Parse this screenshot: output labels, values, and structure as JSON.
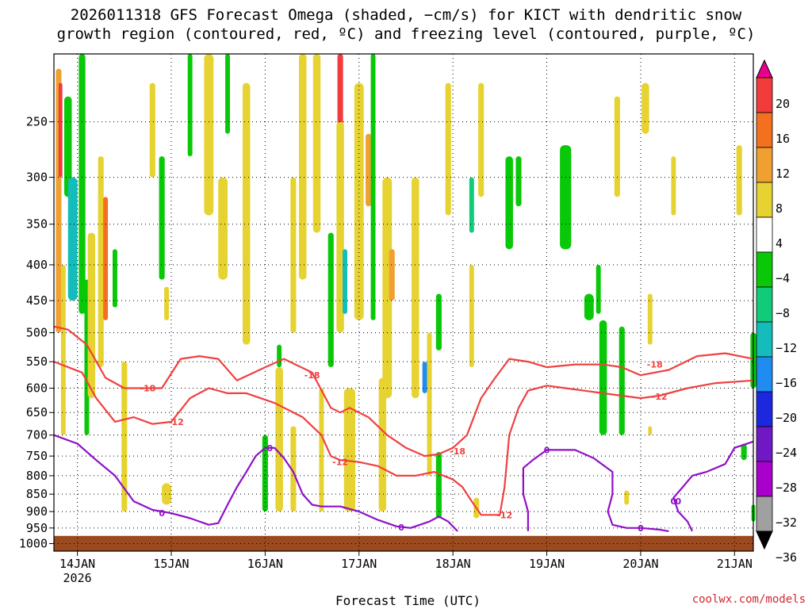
{
  "title_line1": "2026011318 GFS Forecast Omega (shaded, −cm/s) for KICT with dendritic snow",
  "title_line2": "growth region (contoured, red, ºC) and freezing level (contoured, purple, ºC)",
  "credit": "coolwx.com/models",
  "chart_data": {
    "type": "heatmap",
    "xlabel": "Forecast Time (UTC)",
    "ylabel": "",
    "x_ticks": [
      "14JAN",
      "15JAN",
      "16JAN",
      "17JAN",
      "18JAN",
      "19JAN",
      "20JAN",
      "21JAN"
    ],
    "x_tick_year": "2026",
    "x_range_days": [
      -0.25,
      7.2
    ],
    "y_ticks": [
      250,
      300,
      350,
      400,
      450,
      500,
      550,
      600,
      650,
      700,
      750,
      800,
      850,
      900,
      950,
      1000
    ],
    "y_range_hpa": [
      200,
      1025
    ],
    "grid": true,
    "colorbar": {
      "labels": [
        "20",
        "16",
        "12",
        "8",
        "4",
        "−4",
        "−8",
        "−12",
        "−16",
        "−20",
        "−24",
        "−28",
        "−32",
        "−36"
      ],
      "colors": [
        "#e8008e",
        "#f23b3b",
        "#f2701e",
        "#f0a030",
        "#e6d230",
        "#ffffff",
        "#08c808",
        "#10cc78",
        "#14bcbc",
        "#1e8cf0",
        "#1c28e0",
        "#7018c4",
        "#aa00cc",
        "#a0a0a0",
        "#000000"
      ]
    },
    "omega_patches": [
      {
        "x": -0.2,
        "y0": 210,
        "y1": 500,
        "w": 0.06,
        "c": 3
      },
      {
        "x": -0.18,
        "y0": 220,
        "y1": 300,
        "w": 0.04,
        "c": 1
      },
      {
        "x": -0.15,
        "y0": 400,
        "y1": 700,
        "w": 0.05,
        "c": 4
      },
      {
        "x": -0.1,
        "y0": 230,
        "y1": 320,
        "w": 0.08,
        "c": 6
      },
      {
        "x": -0.05,
        "y0": 300,
        "y1": 450,
        "w": 0.1,
        "c": 8
      },
      {
        "x": 0.05,
        "y0": 200,
        "y1": 470,
        "w": 0.07,
        "c": 6
      },
      {
        "x": 0.1,
        "y0": 420,
        "y1": 700,
        "w": 0.05,
        "c": 6
      },
      {
        "x": 0.15,
        "y0": 360,
        "y1": 620,
        "w": 0.08,
        "c": 4
      },
      {
        "x": 0.25,
        "y0": 280,
        "y1": 560,
        "w": 0.06,
        "c": 4
      },
      {
        "x": 0.3,
        "y0": 320,
        "y1": 480,
        "w": 0.05,
        "c": 2
      },
      {
        "x": 0.4,
        "y0": 380,
        "y1": 460,
        "w": 0.05,
        "c": 6
      },
      {
        "x": 0.5,
        "y0": 550,
        "y1": 900,
        "w": 0.06,
        "c": 4
      },
      {
        "x": 0.8,
        "y0": 220,
        "y1": 300,
        "w": 0.06,
        "c": 4
      },
      {
        "x": 0.9,
        "y0": 280,
        "y1": 420,
        "w": 0.06,
        "c": 6
      },
      {
        "x": 0.95,
        "y0": 430,
        "y1": 480,
        "w": 0.05,
        "c": 4
      },
      {
        "x": 0.95,
        "y0": 820,
        "y1": 880,
        "w": 0.1,
        "c": 4
      },
      {
        "x": 1.2,
        "y0": 200,
        "y1": 280,
        "w": 0.05,
        "c": 6
      },
      {
        "x": 1.4,
        "y0": 200,
        "y1": 340,
        "w": 0.1,
        "c": 4
      },
      {
        "x": 1.55,
        "y0": 300,
        "y1": 420,
        "w": 0.1,
        "c": 4
      },
      {
        "x": 1.6,
        "y0": 200,
        "y1": 260,
        "w": 0.05,
        "c": 6
      },
      {
        "x": 1.8,
        "y0": 220,
        "y1": 520,
        "w": 0.08,
        "c": 4
      },
      {
        "x": 2.0,
        "y0": 700,
        "y1": 900,
        "w": 0.06,
        "c": 6
      },
      {
        "x": 2.15,
        "y0": 520,
        "y1": 560,
        "w": 0.05,
        "c": 6
      },
      {
        "x": 2.15,
        "y0": 560,
        "y1": 900,
        "w": 0.08,
        "c": 4
      },
      {
        "x": 2.3,
        "y0": 300,
        "y1": 500,
        "w": 0.06,
        "c": 4
      },
      {
        "x": 2.3,
        "y0": 680,
        "y1": 900,
        "w": 0.06,
        "c": 4
      },
      {
        "x": 2.4,
        "y0": 200,
        "y1": 420,
        "w": 0.08,
        "c": 4
      },
      {
        "x": 2.55,
        "y0": 200,
        "y1": 360,
        "w": 0.08,
        "c": 4
      },
      {
        "x": 2.6,
        "y0": 600,
        "y1": 900,
        "w": 0.05,
        "c": 4
      },
      {
        "x": 2.7,
        "y0": 360,
        "y1": 560,
        "w": 0.06,
        "c": 6
      },
      {
        "x": 2.8,
        "y0": 200,
        "y1": 260,
        "w": 0.06,
        "c": 1
      },
      {
        "x": 2.8,
        "y0": 250,
        "y1": 500,
        "w": 0.08,
        "c": 4
      },
      {
        "x": 2.85,
        "y0": 380,
        "y1": 470,
        "w": 0.05,
        "c": 8
      },
      {
        "x": 2.9,
        "y0": 600,
        "y1": 900,
        "w": 0.12,
        "c": 4
      },
      {
        "x": 3.0,
        "y0": 220,
        "y1": 480,
        "w": 0.1,
        "c": 4
      },
      {
        "x": 3.1,
        "y0": 260,
        "y1": 330,
        "w": 0.06,
        "c": 3
      },
      {
        "x": 3.15,
        "y0": 200,
        "y1": 480,
        "w": 0.05,
        "c": 6
      },
      {
        "x": 3.25,
        "y0": 580,
        "y1": 900,
        "w": 0.08,
        "c": 4
      },
      {
        "x": 3.3,
        "y0": 300,
        "y1": 620,
        "w": 0.1,
        "c": 4
      },
      {
        "x": 3.35,
        "y0": 380,
        "y1": 450,
        "w": 0.06,
        "c": 3
      },
      {
        "x": 3.6,
        "y0": 300,
        "y1": 620,
        "w": 0.08,
        "c": 4
      },
      {
        "x": 3.7,
        "y0": 550,
        "y1": 610,
        "w": 0.05,
        "c": 9
      },
      {
        "x": 3.75,
        "y0": 500,
        "y1": 800,
        "w": 0.05,
        "c": 4
      },
      {
        "x": 3.85,
        "y0": 440,
        "y1": 530,
        "w": 0.06,
        "c": 6
      },
      {
        "x": 3.85,
        "y0": 740,
        "y1": 920,
        "w": 0.06,
        "c": 6
      },
      {
        "x": 3.95,
        "y0": 220,
        "y1": 340,
        "w": 0.06,
        "c": 4
      },
      {
        "x": 4.2,
        "y0": 300,
        "y1": 360,
        "w": 0.05,
        "c": 7
      },
      {
        "x": 4.2,
        "y0": 400,
        "y1": 560,
        "w": 0.05,
        "c": 4
      },
      {
        "x": 4.25,
        "y0": 860,
        "y1": 920,
        "w": 0.06,
        "c": 4
      },
      {
        "x": 4.3,
        "y0": 220,
        "y1": 320,
        "w": 0.06,
        "c": 4
      },
      {
        "x": 4.6,
        "y0": 280,
        "y1": 380,
        "w": 0.08,
        "c": 6
      },
      {
        "x": 4.7,
        "y0": 280,
        "y1": 330,
        "w": 0.06,
        "c": 6
      },
      {
        "x": 5.2,
        "y0": 270,
        "y1": 380,
        "w": 0.12,
        "c": 6
      },
      {
        "x": 5.45,
        "y0": 440,
        "y1": 480,
        "w": 0.1,
        "c": 6
      },
      {
        "x": 5.55,
        "y0": 400,
        "y1": 470,
        "w": 0.05,
        "c": 6
      },
      {
        "x": 5.6,
        "y0": 480,
        "y1": 700,
        "w": 0.08,
        "c": 6
      },
      {
        "x": 5.8,
        "y0": 490,
        "y1": 700,
        "w": 0.06,
        "c": 6
      },
      {
        "x": 5.75,
        "y0": 230,
        "y1": 320,
        "w": 0.06,
        "c": 4
      },
      {
        "x": 5.85,
        "y0": 840,
        "y1": 880,
        "w": 0.05,
        "c": 4
      },
      {
        "x": 6.05,
        "y0": 220,
        "y1": 260,
        "w": 0.08,
        "c": 4
      },
      {
        "x": 6.1,
        "y0": 440,
        "y1": 520,
        "w": 0.05,
        "c": 4
      },
      {
        "x": 6.1,
        "y0": 680,
        "y1": 700,
        "w": 0.04,
        "c": 4
      },
      {
        "x": 6.35,
        "y0": 280,
        "y1": 340,
        "w": 0.05,
        "c": 4
      },
      {
        "x": 7.05,
        "y0": 270,
        "y1": 340,
        "w": 0.06,
        "c": 4
      },
      {
        "x": 7.1,
        "y0": 720,
        "y1": 760,
        "w": 0.06,
        "c": 6
      },
      {
        "x": 7.2,
        "y0": 500,
        "y1": 600,
        "w": 0.06,
        "c": 6
      },
      {
        "x": 7.2,
        "y0": 880,
        "y1": 930,
        "w": 0.04,
        "c": 6
      }
    ],
    "contours": [
      {
        "name": "-18",
        "color": "#f04040",
        "label": "-18",
        "points": [
          [
            -0.25,
            490
          ],
          [
            -0.1,
            495
          ],
          [
            0.1,
            520
          ],
          [
            0.3,
            580
          ],
          [
            0.5,
            600
          ],
          [
            0.7,
            600
          ],
          [
            0.9,
            600
          ],
          [
            1.1,
            545
          ],
          [
            1.3,
            540
          ],
          [
            1.5,
            545
          ],
          [
            1.7,
            585
          ],
          [
            2.0,
            560
          ],
          [
            2.2,
            545
          ],
          [
            2.5,
            570
          ],
          [
            2.7,
            640
          ],
          [
            2.8,
            650
          ],
          [
            2.9,
            640
          ],
          [
            3.1,
            660
          ],
          [
            3.3,
            700
          ],
          [
            3.5,
            730
          ],
          [
            3.7,
            750
          ],
          [
            3.85,
            745
          ],
          [
            4.0,
            730
          ],
          [
            4.15,
            700
          ],
          [
            4.3,
            620
          ],
          [
            4.45,
            580
          ],
          [
            4.6,
            545
          ],
          [
            4.8,
            550
          ],
          [
            5.0,
            560
          ],
          [
            5.3,
            555
          ],
          [
            5.6,
            555
          ],
          [
            5.8,
            560
          ],
          [
            6.0,
            575
          ],
          [
            6.3,
            565
          ],
          [
            6.6,
            540
          ],
          [
            6.9,
            535
          ],
          [
            7.2,
            545
          ]
        ],
        "label_at": [
          0.75,
          600
        ]
      },
      {
        "name": "-12",
        "color": "#f04040",
        "label": "-12",
        "points": [
          [
            -0.25,
            550
          ],
          [
            0.05,
            570
          ],
          [
            0.2,
            620
          ],
          [
            0.4,
            670
          ],
          [
            0.6,
            660
          ],
          [
            0.8,
            675
          ],
          [
            1.0,
            670
          ],
          [
            1.2,
            620
          ],
          [
            1.4,
            600
          ],
          [
            1.6,
            610
          ],
          [
            1.8,
            610
          ],
          [
            2.1,
            630
          ],
          [
            2.4,
            660
          ],
          [
            2.6,
            700
          ],
          [
            2.7,
            750
          ],
          [
            2.8,
            760
          ],
          [
            3.0,
            765
          ],
          [
            3.2,
            775
          ],
          [
            3.4,
            800
          ],
          [
            3.6,
            800
          ],
          [
            3.8,
            790
          ],
          [
            4.0,
            810
          ],
          [
            4.1,
            830
          ],
          [
            4.2,
            870
          ],
          [
            4.3,
            910
          ],
          [
            4.5,
            910
          ],
          [
            4.55,
            830
          ],
          [
            4.6,
            700
          ],
          [
            4.7,
            640
          ],
          [
            4.8,
            605
          ],
          [
            5.0,
            595
          ],
          [
            5.2,
            600
          ],
          [
            5.4,
            605
          ],
          [
            5.6,
            610
          ],
          [
            5.8,
            615
          ],
          [
            6.0,
            620
          ],
          [
            6.2,
            615
          ],
          [
            6.5,
            600
          ],
          [
            6.8,
            590
          ],
          [
            7.2,
            585
          ]
        ],
        "label_at": [
          1.05,
          670
        ]
      },
      {
        "name": "0",
        "color": "#9010c8",
        "label": "0",
        "points": [
          [
            -0.25,
            700
          ],
          [
            0.0,
            720
          ],
          [
            0.2,
            760
          ],
          [
            0.4,
            800
          ],
          [
            0.6,
            870
          ],
          [
            0.8,
            895
          ],
          [
            1.0,
            905
          ],
          [
            1.2,
            920
          ],
          [
            1.4,
            940
          ],
          [
            1.5,
            935
          ],
          [
            1.6,
            880
          ],
          [
            1.7,
            830
          ],
          [
            1.8,
            790
          ],
          [
            1.9,
            750
          ],
          [
            2.0,
            730
          ],
          [
            2.1,
            730
          ],
          [
            2.2,
            755
          ],
          [
            2.3,
            790
          ],
          [
            2.4,
            850
          ],
          [
            2.5,
            880
          ],
          [
            2.6,
            885
          ],
          [
            2.8,
            885
          ],
          [
            3.0,
            900
          ],
          [
            3.2,
            925
          ],
          [
            3.4,
            945
          ],
          [
            3.55,
            950
          ],
          [
            3.75,
            930
          ],
          [
            3.85,
            915
          ],
          [
            3.95,
            930
          ],
          [
            4.05,
            960
          ]
        ],
        "label_at": [
          0.9,
          905
        ]
      }
    ],
    "freezing_islands": [
      {
        "points": [
          [
            4.8,
            960
          ],
          [
            4.8,
            900
          ],
          [
            4.75,
            850
          ],
          [
            4.75,
            780
          ],
          [
            4.85,
            760
          ],
          [
            5.0,
            735
          ],
          [
            5.3,
            735
          ],
          [
            5.5,
            755
          ],
          [
            5.7,
            790
          ],
          [
            5.7,
            850
          ],
          [
            5.65,
            900
          ],
          [
            5.7,
            940
          ],
          [
            5.85,
            950
          ],
          [
            6.0,
            950
          ],
          [
            6.2,
            955
          ],
          [
            6.3,
            960
          ]
        ],
        "label": "0",
        "label_at": [
          5.0,
          735
        ]
      },
      {
        "points": [
          [
            6.55,
            960
          ],
          [
            6.5,
            930
          ],
          [
            6.4,
            900
          ],
          [
            6.35,
            860
          ],
          [
            6.45,
            830
          ],
          [
            6.55,
            800
          ],
          [
            6.7,
            790
          ],
          [
            6.9,
            770
          ],
          [
            7.0,
            730
          ],
          [
            7.2,
            715
          ]
        ],
        "label": "0",
        "label_at": [
          6.35,
          870
        ]
      }
    ],
    "contour_labels": [
      {
        "text": "-18",
        "x": 2.5,
        "y": 575
      },
      {
        "text": "-18",
        "x": 4.05,
        "y": 738
      },
      {
        "text": "-18",
        "x": 6.15,
        "y": 555
      },
      {
        "text": "-12",
        "x": 2.8,
        "y": 765
      },
      {
        "text": "-12",
        "x": 4.55,
        "y": 910
      },
      {
        "text": "-12",
        "x": 6.2,
        "y": 617
      },
      {
        "text": "0",
        "x": 2.05,
        "y": 730
      },
      {
        "text": "0",
        "x": 3.45,
        "y": 948
      },
      {
        "text": "0",
        "x": 6.0,
        "y": 950
      },
      {
        "text": "0",
        "x": 6.4,
        "y": 870
      }
    ],
    "ground_level_hpa": 975
  }
}
